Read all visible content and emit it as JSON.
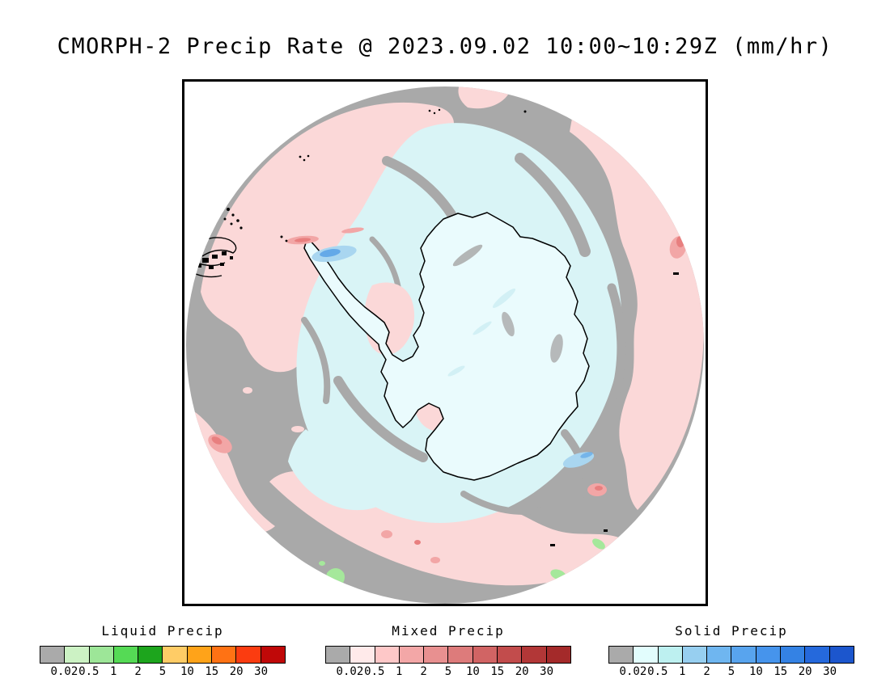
{
  "title": "CMORPH-2 Precip Rate @ 2023.09.02 10:00~10:29Z (mm/hr)",
  "map": {
    "region_label": "Antarctica south-polar view"
  },
  "palette": {
    "map-gray": "#a9a9a9",
    "map-pink": "#fbd8d8",
    "map-red-light": "#f2a6a6",
    "map-red": "#e87f7f",
    "map-cyan": "#d9f4f6",
    "map-land": "#eafbfd",
    "map-blue-light": "#a9d6f0",
    "map-blue": "#64a9e8",
    "map-green": "#a5e89b",
    "ink": "#000000"
  },
  "legends": [
    {
      "id": "liquid",
      "title": "Liquid Precip",
      "tick_labels": [
        "0.02",
        "0.5",
        "1",
        "2",
        "5",
        "10",
        "15",
        "20",
        "30"
      ],
      "colors": [
        "#aaaaaa",
        "#ccf2c4",
        "#9de698",
        "#55da55",
        "#1da51d",
        "#ffcc66",
        "#ffa319",
        "#ff7214",
        "#fb3c10",
        "#c00808"
      ]
    },
    {
      "id": "mixed",
      "title": "Mixed Precip",
      "tick_labels": [
        "0.02",
        "0.5",
        "1",
        "2",
        "5",
        "10",
        "15",
        "20",
        "30"
      ],
      "colors": [
        "#aaaaaa",
        "#ffeaea",
        "#fec8c8",
        "#f3a7a7",
        "#e89090",
        "#dd7b7b",
        "#d16464",
        "#c24c4c",
        "#b23737",
        "#a42a2a"
      ]
    },
    {
      "id": "solid",
      "title": "Solid Precip",
      "tick_labels": [
        "0.02",
        "0.5",
        "1",
        "2",
        "5",
        "10",
        "15",
        "20",
        "30"
      ],
      "colors": [
        "#aaaaaa",
        "#e2fdfd",
        "#bdf0f0",
        "#97cff0",
        "#6fb6f0",
        "#58a4ee",
        "#4694ec",
        "#3482e4",
        "#2569dc",
        "#1c56cd"
      ]
    }
  ]
}
